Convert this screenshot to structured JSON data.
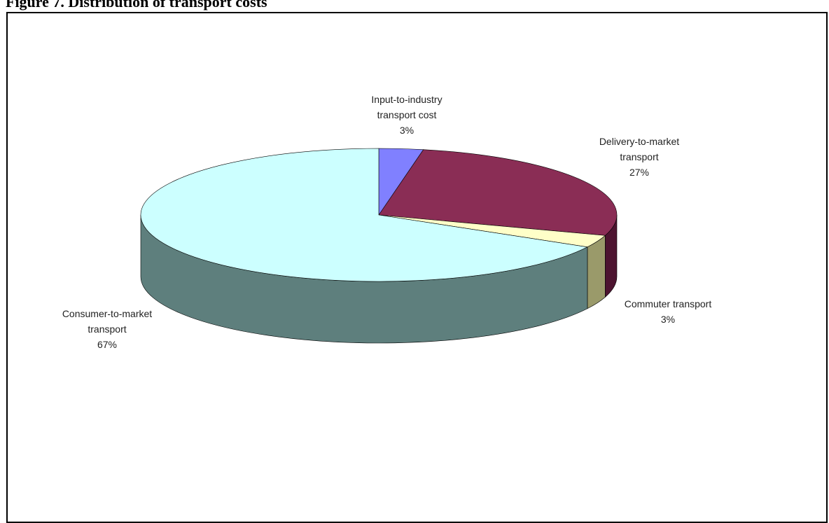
{
  "figure": {
    "title": "Figure 7.  Distribution of transport costs"
  },
  "chart_data": {
    "type": "pie",
    "title": "",
    "slices": [
      {
        "line1": "Input-to-industry",
        "line2": "transport cost",
        "pct_label": "3%",
        "value": 3,
        "color": "#8080ff",
        "side_color": "#4a4ab0"
      },
      {
        "line1": "Delivery-to-market",
        "line2": "transport",
        "pct_label": "27%",
        "value": 27,
        "color": "#8a2d55",
        "side_color": "#4d1430"
      },
      {
        "line1": "Commuter transport",
        "line2": "",
        "pct_label": "3%",
        "value": 3,
        "color": "#ffffc8",
        "side_color": "#9a9a6a"
      },
      {
        "line1": "Consumer-to-market",
        "line2": "transport",
        "pct_label": "67%",
        "value": 67,
        "color": "#ccffff",
        "side_color": "#5e7f7d"
      }
    ],
    "legend": "none",
    "style": "3d"
  }
}
